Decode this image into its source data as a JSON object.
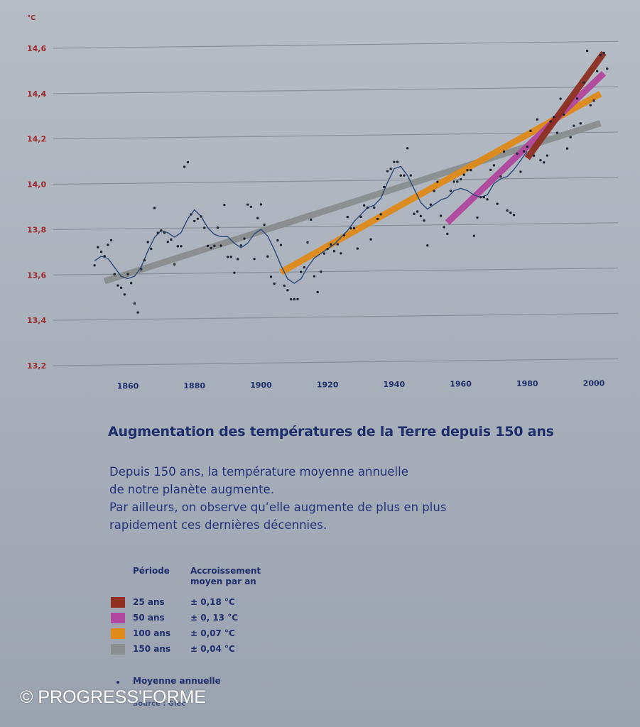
{
  "chart_data": {
    "type": "line",
    "unit_label": "°C",
    "ylim": [
      13.2,
      14.6
    ],
    "y_ticks": [
      13.2,
      13.4,
      13.6,
      13.8,
      14.0,
      14.2,
      14.4,
      14.6
    ],
    "y_tick_labels": [
      "13,2",
      "13,4",
      "13,6",
      "13,8",
      "14,0",
      "14,2",
      "14,4",
      "14,6"
    ],
    "xlim": [
      1850,
      2005
    ],
    "x_ticks": [
      1860,
      1880,
      1900,
      1920,
      1940,
      1960,
      1980,
      2000
    ],
    "x_tick_labels": [
      "1860",
      "1880",
      "1900",
      "1920",
      "1940",
      "1960",
      "1980",
      "2000"
    ],
    "grid": true,
    "annual_points": [
      [
        1850,
        13.64
      ],
      [
        1851,
        13.72
      ],
      [
        1852,
        13.7
      ],
      [
        1853,
        13.68
      ],
      [
        1854,
        13.73
      ],
      [
        1855,
        13.75
      ],
      [
        1856,
        13.6
      ],
      [
        1857,
        13.55
      ],
      [
        1858,
        13.54
      ],
      [
        1859,
        13.51
      ],
      [
        1860,
        13.6
      ],
      [
        1861,
        13.56
      ],
      [
        1862,
        13.47
      ],
      [
        1863,
        13.43
      ],
      [
        1864,
        13.62
      ],
      [
        1865,
        13.66
      ],
      [
        1866,
        13.74
      ],
      [
        1867,
        13.71
      ],
      [
        1868,
        13.89
      ],
      [
        1869,
        13.78
      ],
      [
        1870,
        13.79
      ],
      [
        1871,
        13.78
      ],
      [
        1872,
        13.74
      ],
      [
        1873,
        13.75
      ],
      [
        1874,
        13.64
      ],
      [
        1875,
        13.72
      ],
      [
        1876,
        13.72
      ],
      [
        1877,
        14.07
      ],
      [
        1878,
        14.09
      ],
      [
        1879,
        13.86
      ],
      [
        1880,
        13.83
      ],
      [
        1881,
        13.84
      ],
      [
        1882,
        13.85
      ],
      [
        1883,
        13.8
      ],
      [
        1884,
        13.72
      ],
      [
        1885,
        13.71
      ],
      [
        1886,
        13.72
      ],
      [
        1887,
        13.8
      ],
      [
        1888,
        13.72
      ],
      [
        1889,
        13.9
      ],
      [
        1890,
        13.67
      ],
      [
        1891,
        13.67
      ],
      [
        1892,
        13.6
      ],
      [
        1893,
        13.66
      ],
      [
        1894,
        13.72
      ],
      [
        1895,
        13.75
      ],
      [
        1896,
        13.9
      ],
      [
        1897,
        13.89
      ],
      [
        1898,
        13.66
      ],
      [
        1899,
        13.84
      ],
      [
        1900,
        13.9
      ],
      [
        1901,
        13.81
      ],
      [
        1902,
        13.67
      ],
      [
        1903,
        13.58
      ],
      [
        1904,
        13.55
      ],
      [
        1905,
        13.74
      ],
      [
        1906,
        13.72
      ],
      [
        1907,
        13.54
      ],
      [
        1908,
        13.52
      ],
      [
        1909,
        13.48
      ],
      [
        1910,
        13.48
      ],
      [
        1911,
        13.48
      ],
      [
        1912,
        13.6
      ],
      [
        1913,
        13.62
      ],
      [
        1914,
        13.73
      ],
      [
        1915,
        13.83
      ],
      [
        1916,
        13.58
      ],
      [
        1917,
        13.51
      ],
      [
        1918,
        13.6
      ],
      [
        1919,
        13.68
      ],
      [
        1920,
        13.7
      ],
      [
        1921,
        13.72
      ],
      [
        1922,
        13.69
      ],
      [
        1923,
        13.72
      ],
      [
        1924,
        13.68
      ],
      [
        1925,
        13.76
      ],
      [
        1926,
        13.84
      ],
      [
        1927,
        13.79
      ],
      [
        1928,
        13.79
      ],
      [
        1929,
        13.7
      ],
      [
        1930,
        13.84
      ],
      [
        1931,
        13.89
      ],
      [
        1932,
        13.88
      ],
      [
        1933,
        13.74
      ],
      [
        1934,
        13.88
      ],
      [
        1935,
        13.83
      ],
      [
        1936,
        13.85
      ],
      [
        1937,
        13.97
      ],
      [
        1938,
        14.04
      ],
      [
        1939,
        14.05
      ],
      [
        1940,
        14.08
      ],
      [
        1941,
        14.08
      ],
      [
        1942,
        14.02
      ],
      [
        1943,
        14.02
      ],
      [
        1944,
        14.14
      ],
      [
        1945,
        14.02
      ],
      [
        1946,
        13.85
      ],
      [
        1947,
        13.86
      ],
      [
        1948,
        13.84
      ],
      [
        1949,
        13.82
      ],
      [
        1950,
        13.71
      ],
      [
        1951,
        13.89
      ],
      [
        1952,
        13.95
      ],
      [
        1953,
        13.99
      ],
      [
        1954,
        13.84
      ],
      [
        1955,
        13.79
      ],
      [
        1956,
        13.76
      ],
      [
        1957,
        13.95
      ],
      [
        1958,
        13.99
      ],
      [
        1959,
        13.99
      ],
      [
        1960,
        14.0
      ],
      [
        1961,
        14.02
      ],
      [
        1962,
        14.04
      ],
      [
        1963,
        14.04
      ],
      [
        1964,
        13.75
      ],
      [
        1965,
        13.83
      ],
      [
        1966,
        13.92
      ],
      [
        1967,
        13.92
      ],
      [
        1968,
        13.91
      ],
      [
        1969,
        14.04
      ],
      [
        1970,
        14.06
      ],
      [
        1971,
        13.89
      ],
      [
        1972,
        14.01
      ],
      [
        1973,
        14.12
      ],
      [
        1974,
        13.86
      ],
      [
        1975,
        13.85
      ],
      [
        1976,
        13.84
      ],
      [
        1977,
        14.11
      ],
      [
        1978,
        14.03
      ],
      [
        1979,
        14.12
      ],
      [
        1980,
        14.14
      ],
      [
        1981,
        14.21
      ],
      [
        1982,
        14.1
      ],
      [
        1983,
        14.26
      ],
      [
        1984,
        14.08
      ],
      [
        1985,
        14.07
      ],
      [
        1986,
        14.1
      ],
      [
        1987,
        14.25
      ],
      [
        1988,
        14.27
      ],
      [
        1989,
        14.2
      ],
      [
        1990,
        14.35
      ],
      [
        1991,
        14.28
      ],
      [
        1992,
        14.13
      ],
      [
        1993,
        14.18
      ],
      [
        1994,
        14.23
      ],
      [
        1995,
        14.35
      ],
      [
        1996,
        14.24
      ],
      [
        1997,
        14.42
      ],
      [
        1998,
        14.56
      ],
      [
        1999,
        14.32
      ],
      [
        2000,
        14.34
      ],
      [
        2001,
        14.47
      ],
      [
        2002,
        14.54
      ],
      [
        2003,
        14.55
      ],
      [
        2004,
        14.48
      ]
    ],
    "smoothed_curve": [
      [
        1850,
        13.66
      ],
      [
        1852,
        13.68
      ],
      [
        1854,
        13.67
      ],
      [
        1856,
        13.63
      ],
      [
        1858,
        13.59
      ],
      [
        1860,
        13.58
      ],
      [
        1862,
        13.59
      ],
      [
        1864,
        13.63
      ],
      [
        1866,
        13.7
      ],
      [
        1868,
        13.76
      ],
      [
        1870,
        13.79
      ],
      [
        1872,
        13.78
      ],
      [
        1874,
        13.76
      ],
      [
        1876,
        13.78
      ],
      [
        1878,
        13.84
      ],
      [
        1880,
        13.88
      ],
      [
        1882,
        13.85
      ],
      [
        1884,
        13.8
      ],
      [
        1886,
        13.77
      ],
      [
        1888,
        13.76
      ],
      [
        1890,
        13.76
      ],
      [
        1892,
        13.73
      ],
      [
        1894,
        13.71
      ],
      [
        1896,
        13.73
      ],
      [
        1898,
        13.77
      ],
      [
        1900,
        13.79
      ],
      [
        1902,
        13.76
      ],
      [
        1904,
        13.7
      ],
      [
        1906,
        13.63
      ],
      [
        1908,
        13.57
      ],
      [
        1910,
        13.55
      ],
      [
        1912,
        13.57
      ],
      [
        1914,
        13.62
      ],
      [
        1916,
        13.66
      ],
      [
        1918,
        13.68
      ],
      [
        1920,
        13.7
      ],
      [
        1922,
        13.72
      ],
      [
        1924,
        13.75
      ],
      [
        1926,
        13.78
      ],
      [
        1928,
        13.82
      ],
      [
        1930,
        13.85
      ],
      [
        1932,
        13.88
      ],
      [
        1934,
        13.89
      ],
      [
        1936,
        13.92
      ],
      [
        1938,
        13.99
      ],
      [
        1940,
        14.05
      ],
      [
        1942,
        14.06
      ],
      [
        1944,
        14.02
      ],
      [
        1946,
        13.96
      ],
      [
        1948,
        13.9
      ],
      [
        1950,
        13.87
      ],
      [
        1952,
        13.89
      ],
      [
        1954,
        13.91
      ],
      [
        1956,
        13.92
      ],
      [
        1958,
        13.95
      ],
      [
        1960,
        13.96
      ],
      [
        1962,
        13.95
      ],
      [
        1964,
        13.93
      ],
      [
        1966,
        13.92
      ],
      [
        1968,
        13.93
      ],
      [
        1970,
        13.98
      ],
      [
        1972,
        14.0
      ],
      [
        1974,
        14.01
      ],
      [
        1976,
        14.04
      ],
      [
        1978,
        14.08
      ],
      [
        1980,
        14.12
      ]
    ],
    "series": [
      {
        "name": "150 ans",
        "color": "#8a8e8e",
        "start": [
          1853,
          13.57
        ],
        "end": [
          2002,
          14.24
        ]
      },
      {
        "name": "100 ans",
        "color": "#e08a19",
        "start": [
          1906,
          13.6
        ],
        "end": [
          2002,
          14.37
        ]
      },
      {
        "name": "50 ans",
        "color": "#b1479e",
        "start": [
          1956,
          13.81
        ],
        "end": [
          2003,
          14.46
        ]
      },
      {
        "name": "25 ans",
        "color": "#8e2f22",
        "start": [
          1980,
          14.09
        ],
        "end": [
          2003,
          14.55
        ]
      }
    ]
  },
  "text": {
    "title": "Augmentation des températures de la Terre depuis 150 ans",
    "description": [
      "Depuis 150 ans, la température moyenne annuelle",
      "de notre planète augmente.",
      "Par ailleurs, on observe qu’elle augmente de plus en plus",
      "rapidement ces dernières décennies."
    ],
    "copyright": "© PROGRESS'FORME"
  },
  "legend": {
    "header_period": "Période",
    "header_rate_line1": "Accroissement",
    "header_rate_line2": "moyen par an",
    "rows": [
      {
        "period": "25 ans",
        "rate": "± 0,18 °C",
        "color": "#8e2f22"
      },
      {
        "period": "50 ans",
        "rate": "± 0, 13 °C",
        "color": "#b1479e"
      },
      {
        "period": "100 ans",
        "rate": "± 0,07 °C",
        "color": "#e08a19"
      },
      {
        "period": "150 ans",
        "rate": "± 0,04 °C",
        "color": "#8a8e8e"
      }
    ],
    "points_label": "Moyenne annuelle",
    "source": "Source : Giec"
  }
}
